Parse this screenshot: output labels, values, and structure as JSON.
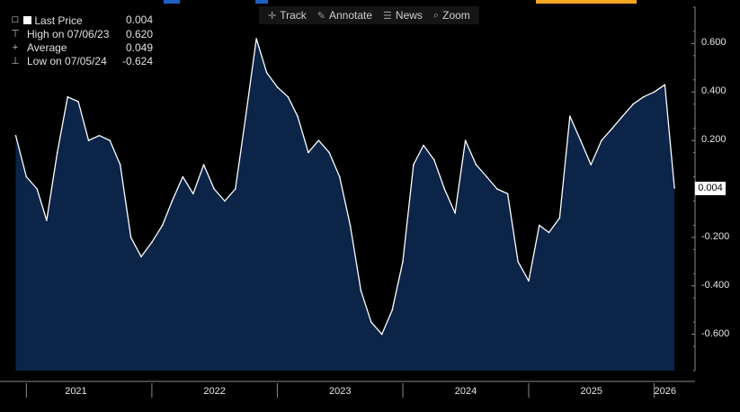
{
  "toolbar": {
    "track": {
      "label": "Track",
      "icon": "crosshair-icon"
    },
    "annotate": {
      "label": "Annotate",
      "icon": "pencil-icon"
    },
    "news": {
      "label": "News",
      "icon": "news-icon"
    },
    "zoom": {
      "label": "Zoom",
      "icon": "magnifier-icon"
    }
  },
  "legend": {
    "last_price": {
      "label": "Last Price",
      "value": "0.004"
    },
    "high": {
      "label": "High on 07/06/23",
      "value": "0.620"
    },
    "average": {
      "label": "Average",
      "value": "0.049"
    },
    "low": {
      "label": "Low on 07/05/24",
      "value": "-0.624"
    }
  },
  "colors": {
    "area_fill": "#0b2447",
    "line": "#ffffff",
    "background": "#000000",
    "axis": "#8a8a8a",
    "topbar_blue": "#1f5fc4",
    "topbar_orange": "#f5a623"
  },
  "chart_data": {
    "type": "area",
    "current_value_label": "0.004",
    "ylim": [
      -0.75,
      0.75
    ],
    "y_ticks": [
      0.6,
      0.4,
      0.2,
      -0.2,
      -0.4,
      -0.6
    ],
    "y_tick_labels": [
      "0.600",
      "0.400",
      "0.200",
      "-0.200",
      "-0.400",
      "-0.600"
    ],
    "x_tick_labels": [
      "2021",
      "2022",
      "2023",
      "2024",
      "2025",
      "2026"
    ],
    "x": [
      "2020-12",
      "2021-01",
      "2021-02",
      "2021-03",
      "2021-04",
      "2021-05",
      "2021-06",
      "2021-07",
      "2021-08",
      "2021-09",
      "2021-10",
      "2021-11",
      "2021-12",
      "2022-01",
      "2022-02",
      "2022-03",
      "2022-04",
      "2022-05",
      "2022-06",
      "2022-07",
      "2022-08",
      "2022-09",
      "2022-10",
      "2022-11",
      "2022-12",
      "2023-01",
      "2023-02",
      "2023-03",
      "2023-04",
      "2023-05",
      "2023-06",
      "2023-07",
      "2023-08",
      "2023-09",
      "2023-10",
      "2023-11",
      "2023-12",
      "2024-01",
      "2024-02",
      "2024-03",
      "2024-04",
      "2024-05",
      "2024-06",
      "2024-07",
      "2024-08",
      "2024-09",
      "2024-10",
      "2024-11",
      "2024-12",
      "2025-01",
      "2025-02",
      "2025-03",
      "2025-04",
      "2025-05",
      "2025-06",
      "2025-07",
      "2025-08",
      "2025-09",
      "2025-10",
      "2025-11",
      "2025-12",
      "2026-01",
      "2026-02",
      "2026-03"
    ],
    "series": [
      {
        "values": [
          0.22,
          0.05,
          0.0,
          -0.13,
          0.15,
          0.38,
          0.36,
          0.2,
          0.22,
          0.2,
          0.1,
          -0.2,
          -0.28,
          -0.22,
          -0.15,
          -0.05,
          0.05,
          -0.02,
          0.1,
          0.0,
          -0.05,
          0.0,
          0.3,
          0.62,
          0.48,
          0.42,
          0.38,
          0.3,
          0.15,
          0.2,
          0.15,
          0.05,
          -0.15,
          -0.42,
          -0.55,
          -0.6,
          -0.5,
          -0.3,
          0.1,
          0.18,
          0.12,
          0.0,
          -0.1,
          0.2,
          0.1,
          0.05,
          0.0,
          -0.02,
          -0.3,
          -0.38,
          -0.15,
          -0.18,
          -0.12,
          0.3,
          0.2,
          0.1,
          0.2,
          0.25,
          0.3,
          0.35,
          0.38,
          0.4,
          0.43,
          0.004
        ]
      }
    ]
  }
}
